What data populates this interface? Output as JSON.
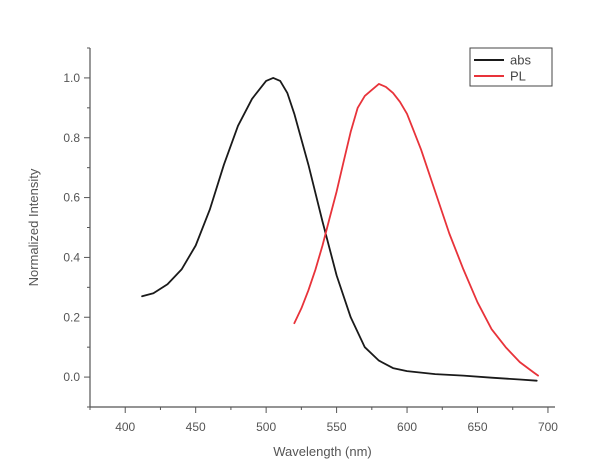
{
  "chart_data": {
    "type": "line",
    "xlabel": "Wavelength (nm)",
    "ylabel": "Normalized Intensity",
    "xlim": [
      375,
      705
    ],
    "ylim": [
      -0.1,
      1.1
    ],
    "x_ticks": [
      400,
      450,
      500,
      550,
      600,
      650,
      700
    ],
    "y_ticks": [
      0.0,
      0.2,
      0.4,
      0.6,
      0.8,
      1.0
    ],
    "x_tick_labels": [
      "400",
      "450",
      "500",
      "550",
      "600",
      "650",
      "700"
    ],
    "y_tick_labels": [
      "0.0",
      "0.2",
      "0.4",
      "0.6",
      "0.8",
      "1.0"
    ],
    "grid": false,
    "legend_position": "top-right",
    "series": [
      {
        "name": "abs",
        "color": "#1a1a1a",
        "x": [
          412,
          420,
          430,
          440,
          450,
          460,
          470,
          480,
          490,
          500,
          505,
          510,
          515,
          520,
          530,
          540,
          550,
          560,
          570,
          580,
          590,
          600,
          620,
          640,
          660,
          680,
          692
        ],
        "y": [
          0.27,
          0.28,
          0.31,
          0.36,
          0.44,
          0.56,
          0.71,
          0.84,
          0.93,
          0.99,
          1.0,
          0.99,
          0.95,
          0.88,
          0.71,
          0.52,
          0.34,
          0.2,
          0.1,
          0.055,
          0.03,
          0.02,
          0.01,
          0.005,
          -0.002,
          -0.008,
          -0.012
        ]
      },
      {
        "name": "PL",
        "color": "#e8333a",
        "x": [
          520,
          525,
          530,
          535,
          540,
          545,
          550,
          555,
          560,
          565,
          570,
          575,
          580,
          585,
          590,
          595,
          600,
          605,
          610,
          620,
          630,
          640,
          650,
          660,
          670,
          680,
          690,
          693
        ],
        "y": [
          0.18,
          0.23,
          0.29,
          0.36,
          0.44,
          0.53,
          0.62,
          0.72,
          0.82,
          0.9,
          0.94,
          0.96,
          0.98,
          0.97,
          0.95,
          0.92,
          0.88,
          0.82,
          0.76,
          0.62,
          0.48,
          0.36,
          0.25,
          0.16,
          0.1,
          0.05,
          0.015,
          0.005
        ]
      }
    ]
  }
}
